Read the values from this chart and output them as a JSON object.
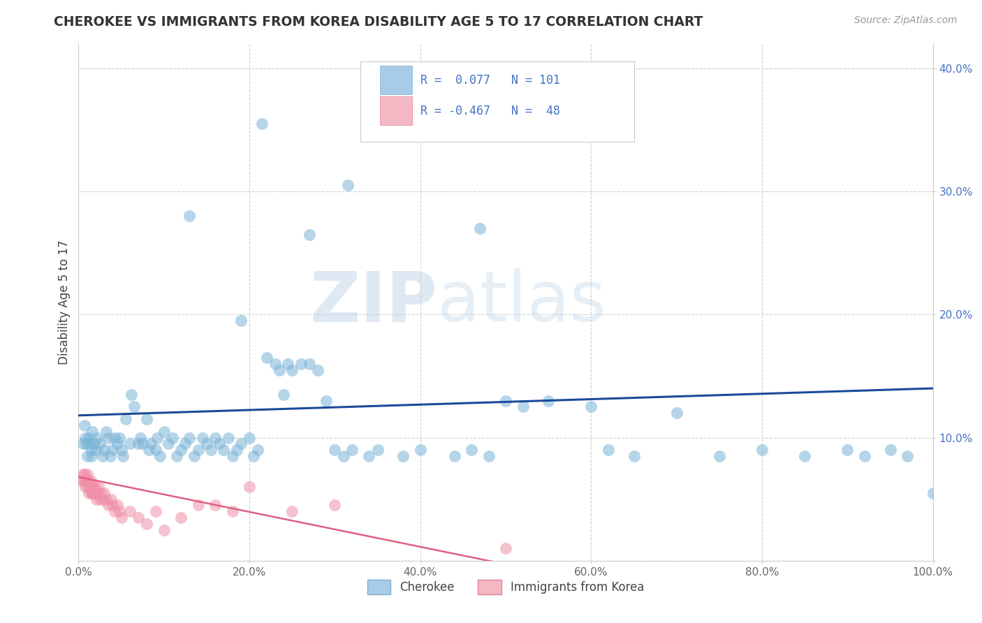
{
  "title": "CHEROKEE VS IMMIGRANTS FROM KOREA DISABILITY AGE 5 TO 17 CORRELATION CHART",
  "source": "Source: ZipAtlas.com",
  "ylabel": "Disability Age 5 to 17",
  "xlim": [
    0.0,
    1.0
  ],
  "ylim": [
    0.0,
    0.42
  ],
  "r_cherokee": 0.077,
  "n_cherokee": 101,
  "r_korea": -0.467,
  "n_korea": 48,
  "background_color": "#ffffff",
  "grid_color": "#cccccc",
  "cherokee_color": "#7ab4d8",
  "korea_color": "#f090a8",
  "cherokee_line_color": "#1a4a99",
  "korea_line_color": "#e06080",
  "legend_text_color": "#4472c4",
  "legend_label1": "R =  0.077   N = 101",
  "legend_label2": "R = -0.467   N =  48",
  "bottom_legend1": "Cherokee",
  "bottom_legend2": "Immigrants from Korea",
  "title_color": "#333333",
  "source_color": "#999999",
  "ytick_color": "#4472c4",
  "xtick_color": "#666666",
  "cherokee_x": [
    0.005,
    0.007,
    0.008,
    0.009,
    0.01,
    0.012,
    0.013,
    0.015,
    0.015,
    0.016,
    0.018,
    0.02,
    0.022,
    0.025,
    0.028,
    0.03,
    0.032,
    0.035,
    0.037,
    0.04,
    0.042,
    0.045,
    0.048,
    0.05,
    0.052,
    0.055,
    0.06,
    0.062,
    0.065,
    0.07,
    0.072,
    0.075,
    0.08,
    0.082,
    0.085,
    0.09,
    0.092,
    0.095,
    0.1,
    0.105,
    0.11,
    0.115,
    0.12,
    0.125,
    0.13,
    0.135,
    0.14,
    0.145,
    0.15,
    0.155,
    0.16,
    0.165,
    0.17,
    0.175,
    0.18,
    0.185,
    0.19,
    0.2,
    0.205,
    0.21,
    0.22,
    0.23,
    0.235,
    0.24,
    0.245,
    0.25,
    0.26,
    0.27,
    0.28,
    0.29,
    0.3,
    0.31,
    0.32,
    0.34,
    0.35,
    0.38,
    0.4,
    0.44,
    0.46,
    0.48,
    0.5,
    0.52,
    0.55,
    0.6,
    0.62,
    0.65,
    0.7,
    0.75,
    0.8,
    0.85,
    0.9,
    0.92,
    0.95,
    0.97,
    1.0,
    0.215,
    0.315,
    0.47,
    0.13,
    0.19,
    0.27
  ],
  "cherokee_y": [
    0.095,
    0.11,
    0.1,
    0.095,
    0.085,
    0.1,
    0.095,
    0.09,
    0.085,
    0.105,
    0.095,
    0.09,
    0.1,
    0.095,
    0.085,
    0.09,
    0.105,
    0.1,
    0.085,
    0.09,
    0.1,
    0.095,
    0.1,
    0.09,
    0.085,
    0.115,
    0.095,
    0.135,
    0.125,
    0.095,
    0.1,
    0.095,
    0.115,
    0.09,
    0.095,
    0.09,
    0.1,
    0.085,
    0.105,
    0.095,
    0.1,
    0.085,
    0.09,
    0.095,
    0.1,
    0.085,
    0.09,
    0.1,
    0.095,
    0.09,
    0.1,
    0.095,
    0.09,
    0.1,
    0.085,
    0.09,
    0.095,
    0.1,
    0.085,
    0.09,
    0.165,
    0.16,
    0.155,
    0.135,
    0.16,
    0.155,
    0.16,
    0.16,
    0.155,
    0.13,
    0.09,
    0.085,
    0.09,
    0.085,
    0.09,
    0.085,
    0.09,
    0.085,
    0.09,
    0.085,
    0.13,
    0.125,
    0.13,
    0.125,
    0.09,
    0.085,
    0.12,
    0.085,
    0.09,
    0.085,
    0.09,
    0.085,
    0.09,
    0.085,
    0.055,
    0.355,
    0.305,
    0.27,
    0.28,
    0.195,
    0.265
  ],
  "korea_x": [
    0.003,
    0.005,
    0.006,
    0.007,
    0.008,
    0.008,
    0.009,
    0.01,
    0.01,
    0.011,
    0.012,
    0.013,
    0.014,
    0.015,
    0.015,
    0.016,
    0.017,
    0.018,
    0.019,
    0.02,
    0.021,
    0.022,
    0.023,
    0.025,
    0.026,
    0.028,
    0.03,
    0.032,
    0.035,
    0.038,
    0.04,
    0.042,
    0.045,
    0.048,
    0.05,
    0.06,
    0.07,
    0.08,
    0.09,
    0.1,
    0.12,
    0.14,
    0.16,
    0.18,
    0.2,
    0.25,
    0.3,
    0.5
  ],
  "korea_y": [
    0.065,
    0.07,
    0.065,
    0.07,
    0.065,
    0.06,
    0.065,
    0.06,
    0.07,
    0.065,
    0.055,
    0.06,
    0.065,
    0.055,
    0.06,
    0.055,
    0.06,
    0.055,
    0.06,
    0.055,
    0.05,
    0.055,
    0.06,
    0.05,
    0.055,
    0.05,
    0.055,
    0.05,
    0.045,
    0.05,
    0.045,
    0.04,
    0.045,
    0.04,
    0.035,
    0.04,
    0.035,
    0.03,
    0.04,
    0.025,
    0.035,
    0.045,
    0.045,
    0.04,
    0.06,
    0.04,
    0.045,
    0.01
  ],
  "cherokee_trend": [
    0.0,
    1.0,
    0.118,
    0.14
  ],
  "korea_trend": [
    0.0,
    0.55,
    0.068,
    -0.01
  ]
}
